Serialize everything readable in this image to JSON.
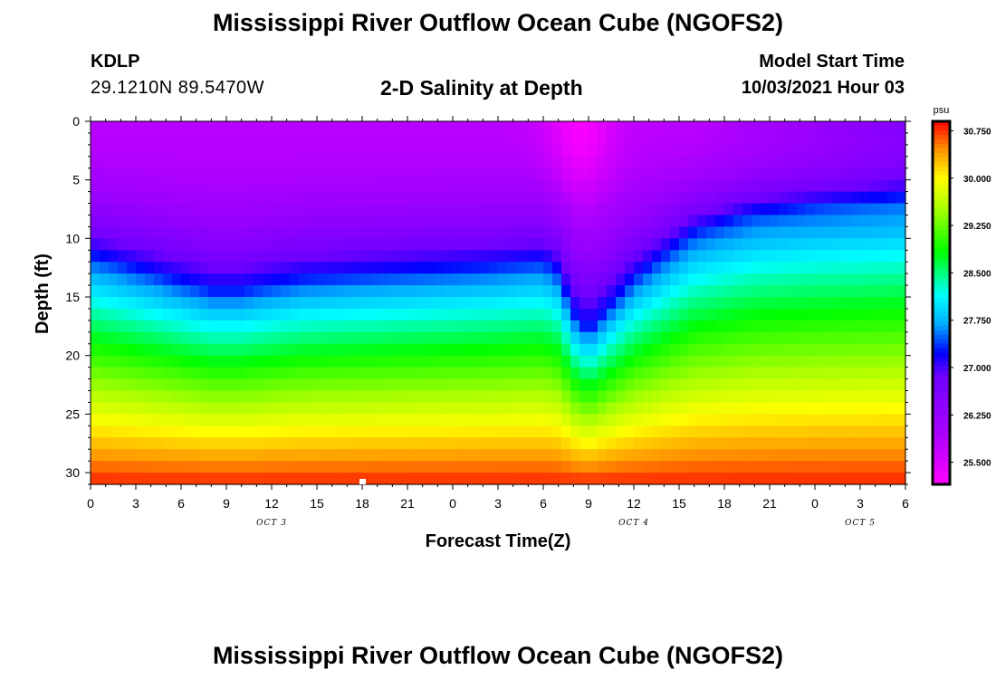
{
  "page": {
    "title_top": "Mississippi River Outflow Ocean Cube (NGOFS2)",
    "title_bottom": "Mississippi River Outflow Ocean Cube (NGOFS2)",
    "station": "KDLP",
    "coords": "29.1210N  89.5470W",
    "subtitle": "2-D Salinity at Depth",
    "model_start_label": "Model Start Time",
    "model_start_value": "10/03/2021 Hour 03"
  },
  "chart_data": {
    "type": "heatmap",
    "title": "2-D Salinity at Depth",
    "xlabel": "Forecast Time(Z)",
    "ylabel": "Depth (ft)",
    "x_start_hour": 0,
    "x_end_hour": 54,
    "y_range": [
      0,
      31
    ],
    "y_ticks": [
      0,
      5,
      10,
      15,
      20,
      25,
      30
    ],
    "x_ticks": [
      {
        "hour": 0,
        "label": "0"
      },
      {
        "hour": 3,
        "label": "3"
      },
      {
        "hour": 6,
        "label": "6"
      },
      {
        "hour": 9,
        "label": "9"
      },
      {
        "hour": 12,
        "label": "12"
      },
      {
        "hour": 15,
        "label": "15"
      },
      {
        "hour": 18,
        "label": "18"
      },
      {
        "hour": 21,
        "label": "21"
      },
      {
        "hour": 24,
        "label": "0"
      },
      {
        "hour": 27,
        "label": "3"
      },
      {
        "hour": 30,
        "label": "6"
      },
      {
        "hour": 33,
        "label": "9"
      },
      {
        "hour": 36,
        "label": "12"
      },
      {
        "hour": 39,
        "label": "15"
      },
      {
        "hour": 42,
        "label": "18"
      },
      {
        "hour": 45,
        "label": "21"
      },
      {
        "hour": 48,
        "label": "0"
      },
      {
        "hour": 51,
        "label": "3"
      },
      {
        "hour": 54,
        "label": "6"
      }
    ],
    "day_labels": [
      {
        "hour": 12,
        "label": "OCT 3"
      },
      {
        "hour": 36,
        "label": "OCT 4"
      },
      {
        "hour": 51,
        "label": "OCT 5"
      }
    ],
    "colorbar": {
      "unit": "psu",
      "min": 25.15,
      "max": 30.9,
      "ticks": [
        30.75,
        30.0,
        29.25,
        28.5,
        27.75,
        27.0,
        26.25,
        25.5
      ],
      "tick_labels": [
        "30.750",
        "30.000",
        "29.250",
        "28.500",
        "27.750",
        "27.000",
        "26.250",
        "25.500"
      ]
    },
    "interface_depths": {
      "hours": [
        0,
        4,
        8,
        10,
        14,
        20,
        26,
        30,
        31,
        32,
        33,
        34,
        36,
        40,
        44,
        48,
        54
      ],
      "halocline_ft": [
        11.5,
        13.0,
        14.5,
        14.5,
        13.5,
        13.0,
        12.5,
        12.0,
        13.0,
        16.5,
        18.0,
        16.5,
        13.5,
        9.5,
        8.0,
        7.5,
        7.0
      ],
      "surface_min": 25.8,
      "bottom_max": 30.8
    },
    "data_labels": [],
    "legend": "right"
  }
}
